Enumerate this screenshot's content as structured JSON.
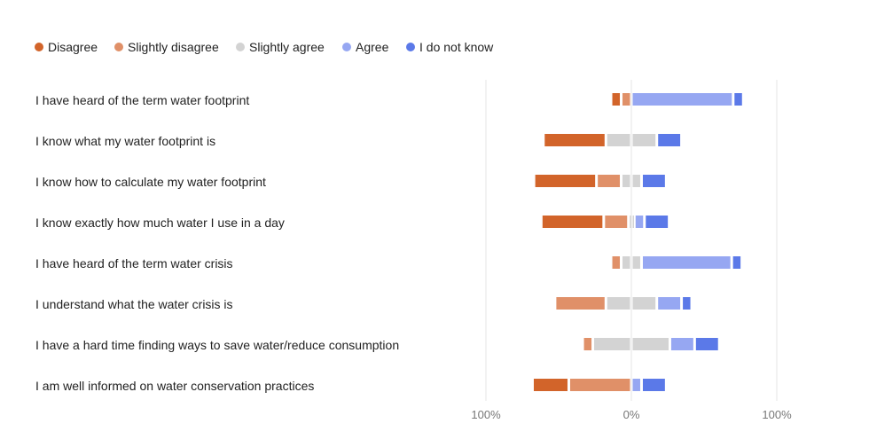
{
  "chart_data": {
    "type": "bar",
    "subtype": "diverging-stacked-horizontal",
    "title": "",
    "xlabel": "",
    "ylabel": "",
    "xlim": [
      -100,
      100
    ],
    "xticks": [
      "100%",
      "0%",
      "100%"
    ],
    "legend_position": "top-left",
    "categories": [
      "I have heard of the term water footprint",
      "I know what my water footprint is",
      "I know how to calculate my water footprint",
      "I know exactly how much water I use in a day",
      "I have heard of the term water crisis",
      "I understand what the water crisis is",
      "I have a hard time finding ways to save water/reduce consumption",
      "I am well informed on water conservation practices"
    ],
    "series": [
      {
        "name": "Disagree",
        "side": "negative",
        "color": "#D2642A",
        "values": [
          7,
          43,
          43,
          43,
          0,
          0,
          0,
          25
        ]
      },
      {
        "name": "Slightly disagree",
        "side": "negative",
        "color": "#E09068",
        "values": [
          7,
          0,
          17,
          17,
          7,
          35,
          7,
          43
        ]
      },
      {
        "name": "Slightly agree",
        "side": "split",
        "color": "#D3D3D3",
        "values": [
          0,
          35,
          14,
          4,
          14,
          35,
          53,
          0
        ]
      },
      {
        "name": "Agree",
        "side": "positive",
        "color": "#96A7F2",
        "values": [
          70,
          0,
          0,
          7,
          62,
          17,
          17,
          7
        ]
      },
      {
        "name": "I do not know",
        "side": "positive",
        "color": "#5B79E8",
        "values": [
          7,
          17,
          17,
          17,
          7,
          7,
          17,
          17
        ]
      }
    ]
  }
}
